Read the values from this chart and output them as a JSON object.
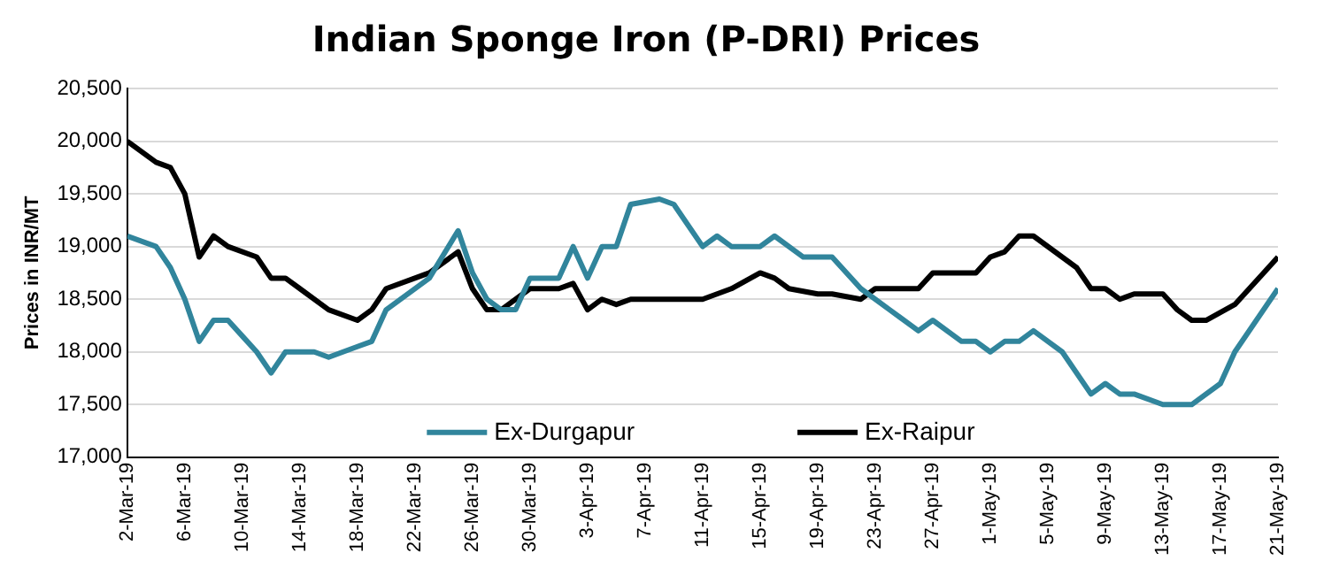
{
  "chart_data": {
    "type": "line",
    "title": "Indian Sponge Iron (P-DRI) Prices",
    "ylabel": "Prices in INR/MT",
    "xlim": [
      "--03-02",
      "--05-21"
    ],
    "xticks": [
      {
        "value": "--03-02",
        "label": "2-Mar-19"
      },
      {
        "value": "--03-06",
        "label": "6-Mar-19"
      },
      {
        "value": "--03-10",
        "label": "10-Mar-19"
      },
      {
        "value": "--03-14",
        "label": "14-Mar-19"
      },
      {
        "value": "--03-18",
        "label": "18-Mar-19"
      },
      {
        "value": "--03-22",
        "label": "22-Mar-19"
      },
      {
        "value": "--03-26",
        "label": "26-Mar-19"
      },
      {
        "value": "--03-30",
        "label": "30-Mar-19"
      },
      {
        "value": "--04-03",
        "label": "3-Apr-19"
      },
      {
        "value": "--04-07",
        "label": "7-Apr-19"
      },
      {
        "value": "--04-11",
        "label": "11-Apr-19"
      },
      {
        "value": "--04-15",
        "label": "15-Apr-19"
      },
      {
        "value": "--04-19",
        "label": "19-Apr-19"
      },
      {
        "value": "--04-23",
        "label": "23-Apr-19"
      },
      {
        "value": "--04-27",
        "label": "27-Apr-19"
      },
      {
        "value": "--05-01",
        "label": "1-May-19"
      },
      {
        "value": "--05-05",
        "label": "5-May-19"
      },
      {
        "value": "--05-09",
        "label": "9-May-19"
      },
      {
        "value": "--05-13",
        "label": "13-May-19"
      },
      {
        "value": "--05-17",
        "label": "17-May-19"
      },
      {
        "value": "--05-21",
        "label": "21-May-19"
      }
    ],
    "ylim": [
      17000,
      20500
    ],
    "yticks": [
      {
        "value": 17000,
        "label": "17,000"
      },
      {
        "value": 17500,
        "label": "17,500"
      },
      {
        "value": 18000,
        "label": "18,000"
      },
      {
        "value": 18500,
        "label": "18,500"
      },
      {
        "value": 19000,
        "label": "19,000"
      },
      {
        "value": 19500,
        "label": "19,500"
      },
      {
        "value": 20000,
        "label": "20,000"
      },
      {
        "value": 20500,
        "label": "20,500"
      }
    ],
    "grid": "y",
    "legend": "bottom",
    "marker": "none",
    "line_style": "solid",
    "series": [
      {
        "name": "Ex-Durgapur",
        "color": "#31859c",
        "x": [
          "--03-02",
          "--03-04",
          "--03-05",
          "--03-06",
          "--03-07",
          "--03-08",
          "--03-09",
          "--03-10",
          "--03-11",
          "--03-12",
          "--03-13",
          "--03-15",
          "--03-16",
          "--03-18",
          "--03-19",
          "--03-20",
          "--03-23",
          "--03-25",
          "--03-26",
          "--03-27",
          "--03-28",
          "--03-29",
          "--03-30",
          "--04-01",
          "--04-02",
          "--04-03",
          "--04-04",
          "--04-05",
          "--04-06",
          "--04-08",
          "--04-09",
          "--04-11",
          "--04-12",
          "--04-13",
          "--04-15",
          "--04-16",
          "--04-18",
          "--04-20",
          "--04-22",
          "--04-24",
          "--04-26",
          "--04-27",
          "--04-29",
          "--04-30",
          "--05-01",
          "--05-02",
          "--05-03",
          "--05-04",
          "--05-06",
          "--05-08",
          "--05-09",
          "--05-10",
          "--05-11",
          "--05-13",
          "--05-15",
          "--05-17",
          "--05-18",
          "--05-21"
        ],
        "values": [
          19100,
          19000,
          18800,
          18500,
          18100,
          18300,
          18300,
          18150,
          18000,
          17800,
          18000,
          18000,
          17950,
          18050,
          18100,
          18400,
          18700,
          19150,
          18750,
          18500,
          18400,
          18400,
          18700,
          18700,
          19000,
          18700,
          19000,
          19000,
          19400,
          19450,
          19400,
          19000,
          19100,
          19000,
          19000,
          19100,
          18900,
          18900,
          18600,
          18400,
          18200,
          18300,
          18100,
          18100,
          18000,
          18100,
          18100,
          18200,
          18000,
          17600,
          17700,
          17600,
          17600,
          17500,
          17500,
          17700,
          18000,
          18600
        ]
      },
      {
        "name": "Ex-Raipur",
        "color": "#000000",
        "x": [
          "--03-02",
          "--03-04",
          "--03-05",
          "--03-06",
          "--03-07",
          "--03-08",
          "--03-09",
          "--03-11",
          "--03-12",
          "--03-13",
          "--03-14",
          "--03-16",
          "--03-18",
          "--03-19",
          "--03-20",
          "--03-23",
          "--03-25",
          "--03-26",
          "--03-27",
          "--03-28",
          "--03-30",
          "--04-01",
          "--04-02",
          "--04-03",
          "--04-04",
          "--04-05",
          "--04-06",
          "--04-11",
          "--04-13",
          "--04-15",
          "--04-16",
          "--04-17",
          "--04-19",
          "--04-20",
          "--04-22",
          "--04-23",
          "--04-26",
          "--04-27",
          "--04-30",
          "--05-01",
          "--05-02",
          "--05-03",
          "--05-04",
          "--05-07",
          "--05-08",
          "--05-09",
          "--05-10",
          "--05-11",
          "--05-13",
          "--05-14",
          "--05-15",
          "--05-16",
          "--05-18",
          "--05-20",
          "--05-21"
        ],
        "values": [
          20000,
          19800,
          19750,
          19500,
          18900,
          19100,
          19000,
          18900,
          18700,
          18700,
          18600,
          18400,
          18300,
          18400,
          18600,
          18750,
          18950,
          18600,
          18400,
          18400,
          18600,
          18600,
          18650,
          18400,
          18500,
          18450,
          18500,
          18500,
          18600,
          18750,
          18700,
          18600,
          18550,
          18550,
          18500,
          18600,
          18600,
          18750,
          18750,
          18900,
          18950,
          19100,
          19100,
          18800,
          18600,
          18600,
          18500,
          18550,
          18550,
          18400,
          18300,
          18300,
          18450,
          18750,
          18900
        ]
      }
    ]
  }
}
